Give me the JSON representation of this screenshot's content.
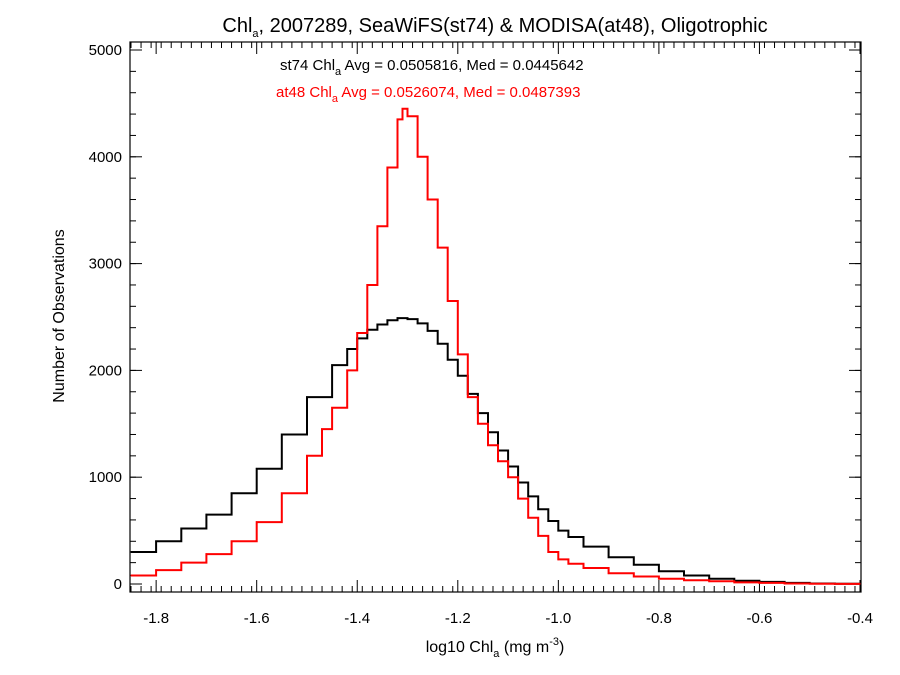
{
  "chart_data": {
    "type": "histogram",
    "title": {
      "pre": "Chl",
      "sub": "a",
      "post": ", 2007289, SeaWiFS(st74) & MODISA(at48), Oligotrophic"
    },
    "xlabel": {
      "pre": "log10 Chl",
      "sub": "a",
      "mid": " (mg m",
      "sup": "-3",
      "post": ")"
    },
    "ylabel": "Number of Observations",
    "xlim": [
      -1.85,
      -0.4
    ],
    "ylim": [
      0,
      5000
    ],
    "x_ticks": [
      -1.8,
      -1.6,
      -1.4,
      -1.2,
      -1.0,
      -0.8,
      -0.6,
      -0.4
    ],
    "x_tick_labels": [
      "-1.8",
      "-1.6",
      "-1.4",
      "-1.2",
      "-1.0",
      "-0.8",
      "-0.6",
      "-0.4"
    ],
    "y_ticks": [
      0,
      1000,
      2000,
      3000,
      4000,
      5000
    ],
    "y_tick_labels": [
      "0",
      "1000",
      "2000",
      "3000",
      "4000",
      "5000"
    ],
    "annotations": [
      {
        "color": "#000000",
        "pre": "st74 Chl",
        "sub": "a",
        "post": " Avg = 0.0505816, Med = 0.0445642"
      },
      {
        "color": "#ff0000",
        "pre": "at48 Chl",
        "sub": "a",
        "post": " Avg = 0.0526074, Med = 0.0487393"
      }
    ],
    "series": [
      {
        "color": "#000000",
        "x": [
          -1.85,
          -1.8,
          -1.75,
          -1.7,
          -1.65,
          -1.6,
          -1.55,
          -1.5,
          -1.45,
          -1.42,
          -1.4,
          -1.38,
          -1.36,
          -1.34,
          -1.32,
          -1.3,
          -1.28,
          -1.26,
          -1.24,
          -1.22,
          -1.2,
          -1.18,
          -1.16,
          -1.14,
          -1.12,
          -1.1,
          -1.08,
          -1.06,
          -1.04,
          -1.02,
          -1.0,
          -0.98,
          -0.95,
          -0.9,
          -0.85,
          -0.8,
          -0.75,
          -0.7,
          -0.65,
          -0.6,
          -0.55,
          -0.5,
          -0.45,
          -0.4
        ],
        "y": [
          300,
          400,
          520,
          650,
          850,
          1080,
          1400,
          1750,
          2050,
          2200,
          2300,
          2380,
          2430,
          2470,
          2490,
          2480,
          2440,
          2370,
          2250,
          2100,
          1950,
          1780,
          1600,
          1420,
          1250,
          1100,
          950,
          820,
          700,
          590,
          500,
          440,
          350,
          250,
          180,
          120,
          80,
          50,
          30,
          20,
          10,
          5,
          2,
          0
        ]
      },
      {
        "color": "#ff0000",
        "x": [
          -1.85,
          -1.8,
          -1.75,
          -1.7,
          -1.65,
          -1.6,
          -1.55,
          -1.5,
          -1.47,
          -1.45,
          -1.42,
          -1.4,
          -1.38,
          -1.36,
          -1.34,
          -1.32,
          -1.31,
          -1.3,
          -1.28,
          -1.26,
          -1.24,
          -1.22,
          -1.2,
          -1.18,
          -1.16,
          -1.14,
          -1.12,
          -1.1,
          -1.08,
          -1.06,
          -1.04,
          -1.02,
          -1.0,
          -0.98,
          -0.95,
          -0.9,
          -0.85,
          -0.8,
          -0.75,
          -0.7,
          -0.65,
          -0.6,
          -0.55,
          -0.5,
          -0.45,
          -0.4
        ],
        "y": [
          80,
          130,
          200,
          280,
          400,
          580,
          850,
          1200,
          1450,
          1650,
          2000,
          2350,
          2800,
          3350,
          3900,
          4350,
          4450,
          4380,
          4000,
          3600,
          3150,
          2650,
          2150,
          1750,
          1500,
          1300,
          1150,
          1000,
          800,
          620,
          450,
          300,
          230,
          190,
          150,
          100,
          70,
          50,
          35,
          25,
          15,
          10,
          5,
          3,
          1,
          0
        ]
      }
    ]
  }
}
